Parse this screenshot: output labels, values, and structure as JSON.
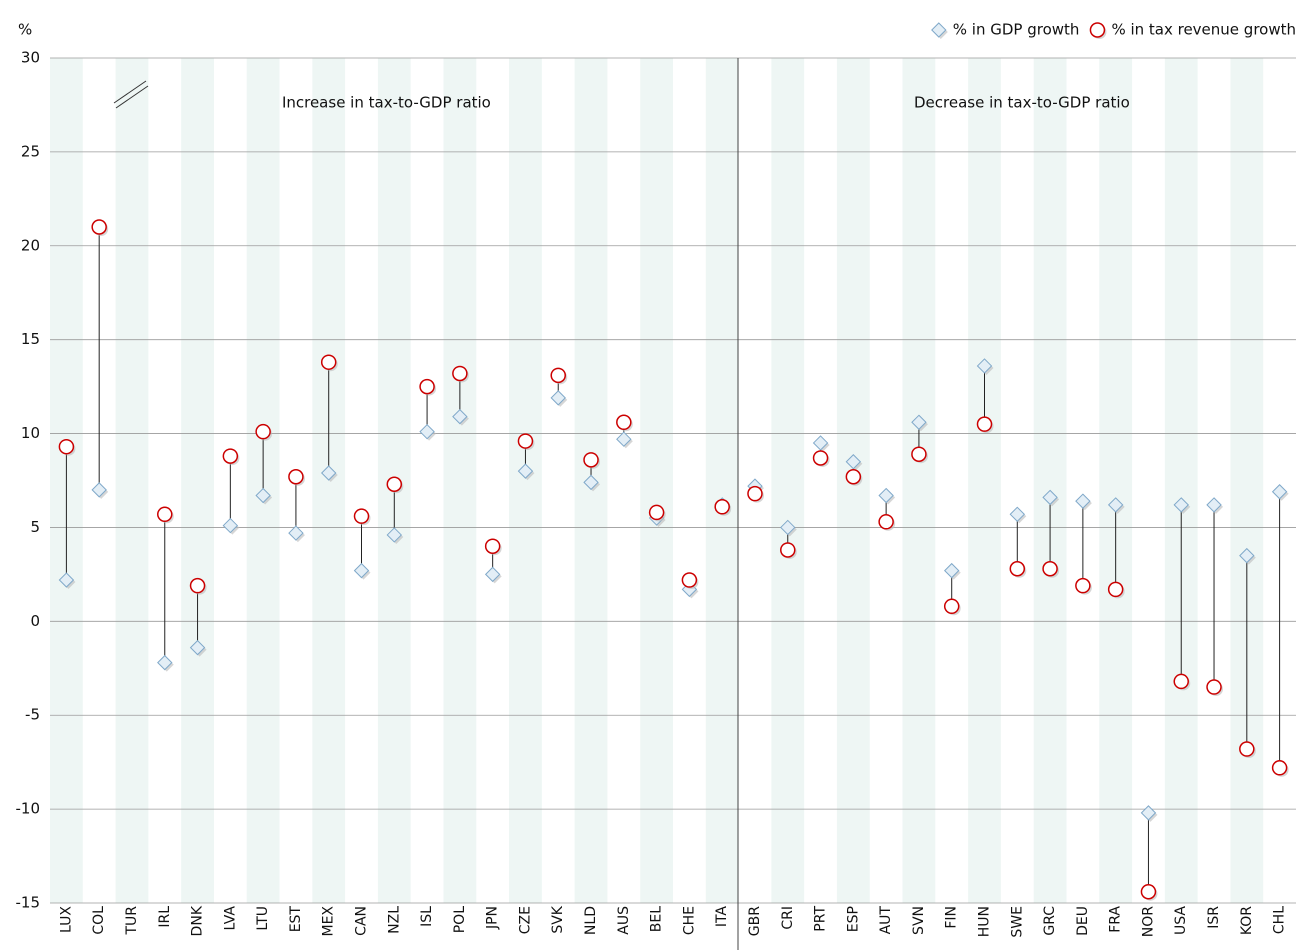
{
  "chart_data": {
    "type": "dumbbell",
    "y_unit": "%",
    "annotations": [
      "Increase in tax-to-GDP ratio",
      "Decrease in tax-to-GDP ratio"
    ],
    "categories": [
      "LUX",
      "COL",
      "TUR",
      "IRL",
      "DNK",
      "LVA",
      "LTU",
      "EST",
      "MEX",
      "CAN",
      "NZL",
      "ISL",
      "POL",
      "JPN",
      "CZE",
      "SVK",
      "NLD",
      "AUS",
      "BEL",
      "CHE",
      "ITA",
      "GBR",
      "CRI",
      "PRT",
      "ESP",
      "AUT",
      "SVN",
      "FIN",
      "HUN",
      "SWE",
      "GRC",
      "DEU",
      "FRA",
      "NOR",
      "USA",
      "ISR",
      "KOR",
      "CHL"
    ],
    "series": [
      {
        "name": "% in GDP growth",
        "color": "#7fa8c9",
        "marker": "diamond",
        "values": [
          2.2,
          7.0,
          null,
          -2.2,
          -1.4,
          5.1,
          6.7,
          4.7,
          7.9,
          2.7,
          4.6,
          10.1,
          10.9,
          2.5,
          8.0,
          11.9,
          7.4,
          9.7,
          5.5,
          1.7,
          6.2,
          7.2,
          5.0,
          9.5,
          8.5,
          6.7,
          10.6,
          2.7,
          13.6,
          5.7,
          6.6,
          6.4,
          6.2,
          -10.2,
          6.2,
          6.2,
          3.5,
          6.9
        ]
      },
      {
        "name": "% in tax revenue growth",
        "color": "#cc0000",
        "marker": "circle",
        "values": [
          9.3,
          21.0,
          null,
          5.7,
          1.9,
          8.8,
          10.1,
          7.7,
          13.8,
          5.6,
          7.3,
          12.5,
          13.2,
          4.0,
          9.6,
          13.1,
          8.6,
          10.6,
          5.8,
          2.2,
          6.1,
          6.8,
          3.8,
          8.7,
          7.7,
          5.3,
          8.9,
          0.8,
          10.5,
          2.8,
          2.8,
          1.9,
          1.7,
          -14.4,
          -3.2,
          -3.5,
          -6.8,
          -7.8
        ]
      }
    ],
    "ylim": [
      -15,
      30
    ],
    "yticks": [
      -15,
      -10,
      -5,
      0,
      5,
      10,
      15,
      20,
      25,
      30
    ],
    "grid": true,
    "legend": "top-right"
  }
}
